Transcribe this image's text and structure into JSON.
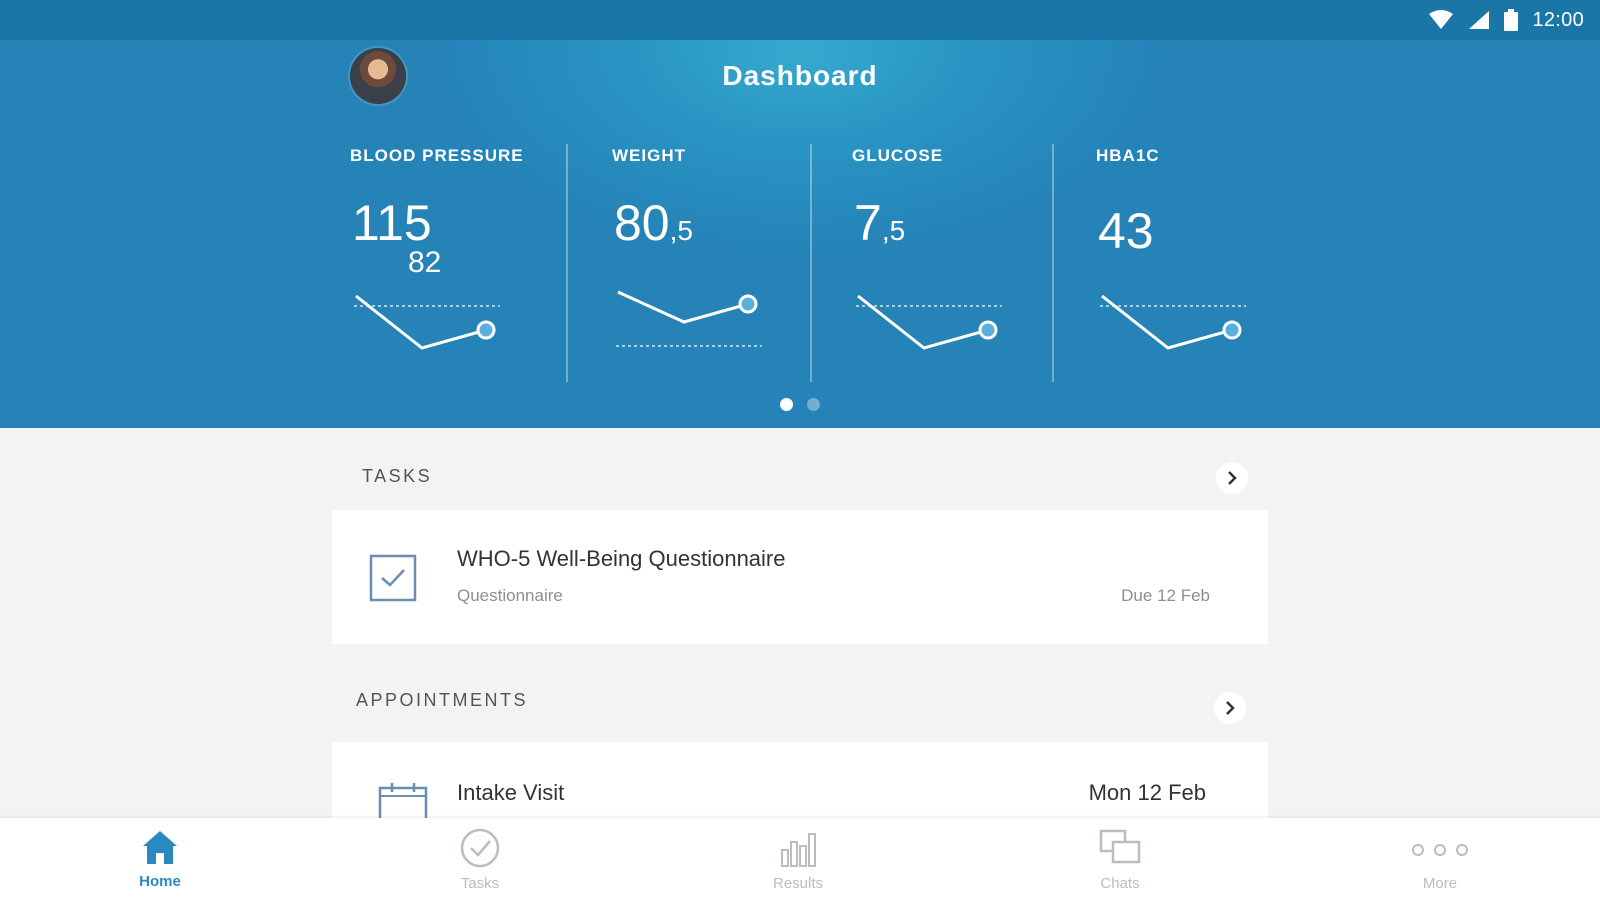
{
  "status_bar": {
    "time": "12:00",
    "icons": [
      "wifi-icon",
      "signal-icon",
      "battery-icon"
    ]
  },
  "header": {
    "title": "Dashboard",
    "avatar": "user-avatar"
  },
  "metrics": [
    {
      "label": "BLOOD PRESSURE",
      "value": "115",
      "secondary": "82",
      "trend": "down-up-above-target"
    },
    {
      "label": "WEIGHT",
      "value": "80",
      "decimal": ",5",
      "trend": "down-up-below-target"
    },
    {
      "label": "GLUCOSE",
      "value": "7",
      "decimal": ",5",
      "trend": "down-up-above-target"
    },
    {
      "label": "HBA1C",
      "value": "43",
      "trend": "down-up-above-target"
    }
  ],
  "pager": {
    "pages": 2,
    "active": 1
  },
  "tasks": {
    "title": "TASKS",
    "items": [
      {
        "title": "WHO-5 Well-Being Questionnaire",
        "type": "Questionnaire",
        "due": "Due 12 Feb"
      }
    ]
  },
  "appointments": {
    "title": "APPOINTMENTS",
    "items": [
      {
        "title": "Intake Visit",
        "date": "Mon 12 Feb"
      }
    ]
  },
  "bottom_nav": [
    {
      "label": "Home",
      "icon": "home-icon",
      "active": true
    },
    {
      "label": "Tasks",
      "icon": "check-circle-icon",
      "active": false
    },
    {
      "label": "Results",
      "icon": "bar-chart-icon",
      "active": false
    },
    {
      "label": "Chats",
      "icon": "chat-icon",
      "active": false
    },
    {
      "label": "More",
      "icon": "more-dots-icon",
      "active": false
    }
  ],
  "colors": {
    "accent": "#2a8ac0",
    "header_dark": "#1b76a8",
    "header_light": "#37a9cf",
    "background": "#f2f3f5"
  }
}
